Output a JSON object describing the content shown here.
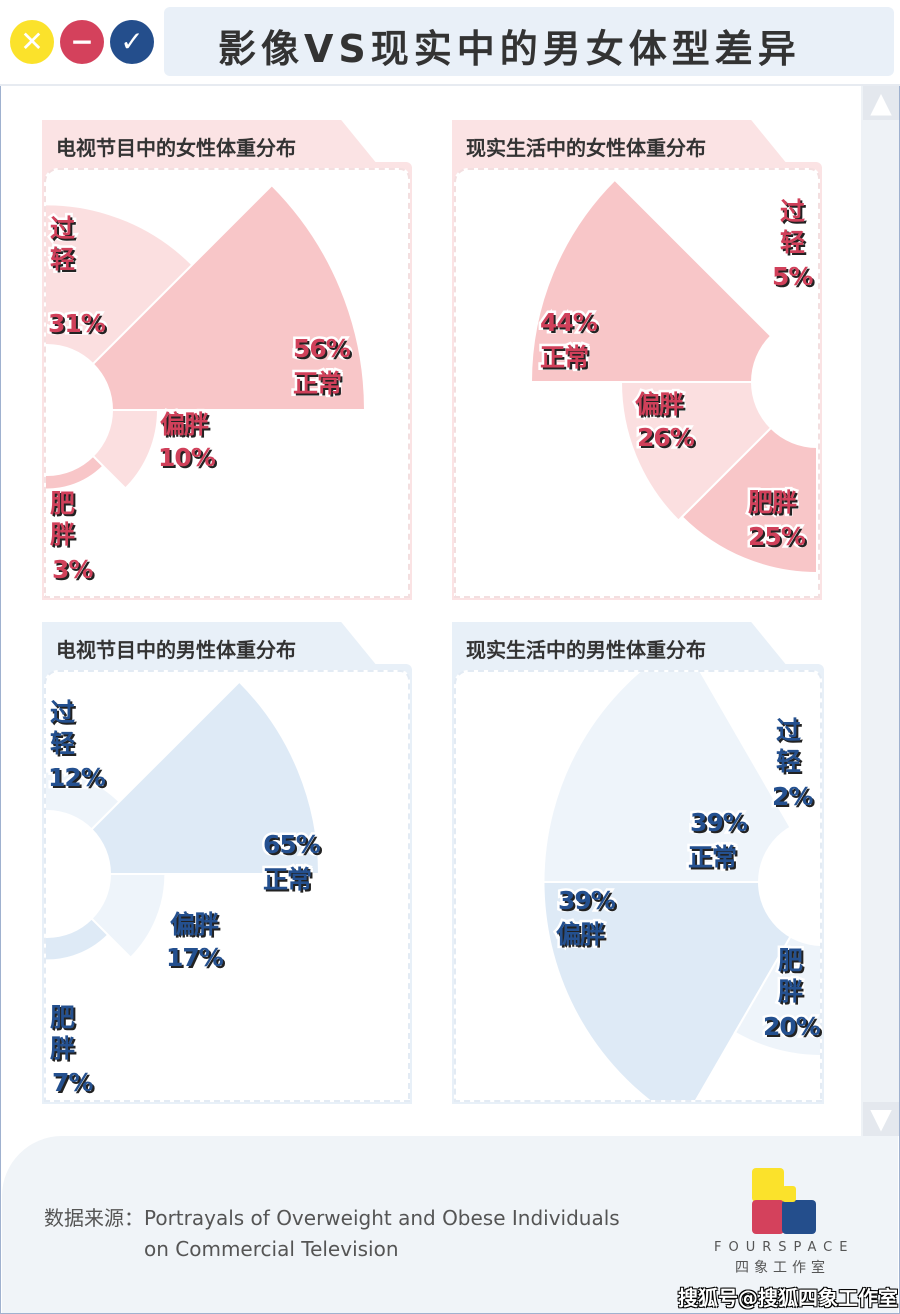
{
  "header": {
    "title": "影像VS现实中的男女体型差异",
    "buttons": {
      "close": "✕",
      "minimize": "−",
      "confirm": "✓"
    }
  },
  "scrollbar": {
    "up": "▲",
    "down": "▼"
  },
  "colors": {
    "female_dark": "#f8c6c8",
    "female_light": "#fbdfe0",
    "male_dark": "#deeaf6",
    "male_light": "#eef4fa",
    "female_text": "#d0405a",
    "male_text": "#24508f"
  },
  "chart_data": [
    {
      "type": "polar-area",
      "title": "电视节目中的女性体重分布",
      "categories": [
        "过轻",
        "正常",
        "偏胖",
        "肥胖"
      ],
      "values": [
        31,
        56,
        10,
        3
      ],
      "labels": [
        "31%",
        "56%",
        "10%",
        "3%"
      ]
    },
    {
      "type": "polar-area",
      "title": "现实生活中的女性体重分布",
      "categories": [
        "过轻",
        "正常",
        "偏胖",
        "肥胖"
      ],
      "values": [
        5,
        44,
        26,
        25
      ],
      "labels": [
        "5%",
        "44%",
        "26%",
        "25%"
      ]
    },
    {
      "type": "polar-area",
      "title": "电视节目中的男性体重分布",
      "categories": [
        "过轻",
        "正常",
        "偏胖",
        "肥胖"
      ],
      "values": [
        12,
        65,
        17,
        7
      ],
      "labels": [
        "12%",
        "65%",
        "17%",
        "7%"
      ]
    },
    {
      "type": "polar-area",
      "title": "现实生活中的男性体重分布",
      "categories": [
        "过轻",
        "正常",
        "偏胖",
        "肥胖"
      ],
      "values": [
        2,
        39,
        39,
        20
      ],
      "labels": [
        "2%",
        "39%",
        "39%",
        "20%"
      ]
    }
  ],
  "footer": {
    "source_label": "数据来源：",
    "source_line1": "Portrayals of Overweight and Obese Individuals",
    "source_line2": "on Commercial Television",
    "brand_en": "FOURSPACE",
    "brand_cn": "四象工作室",
    "watermark": "搜狐号@搜狐四象工作室"
  }
}
